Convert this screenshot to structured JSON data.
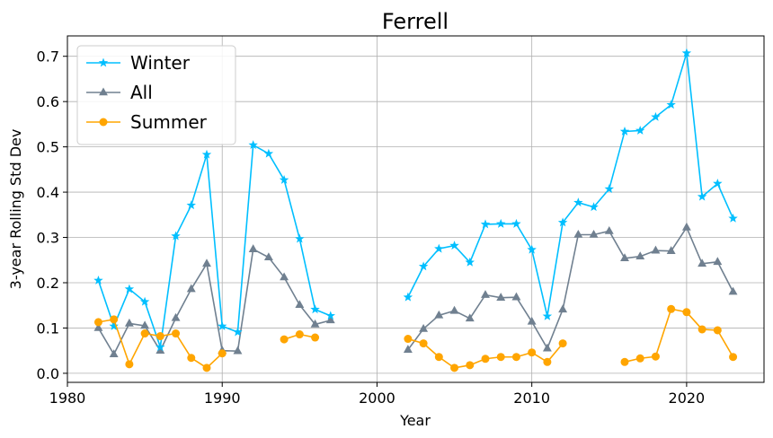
{
  "chart_data": {
    "type": "line",
    "title": "Ferrell",
    "xlabel": "Year",
    "ylabel": "3-year Rolling Std Dev",
    "xlim": [
      1980,
      2025
    ],
    "ylim": [
      -0.02,
      0.745
    ],
    "xticks": [
      1980,
      1990,
      2000,
      2010,
      2020
    ],
    "yticks": [
      "0.0",
      "0.1",
      "0.2",
      "0.3",
      "0.4",
      "0.5",
      "0.6",
      "0.7"
    ],
    "grid": true,
    "legend_position": "top-left",
    "series": [
      {
        "name": "Winter",
        "color": "#00bfff",
        "marker": "star",
        "x": [
          1982,
          1983,
          1984,
          1985,
          1986,
          1987,
          1988,
          1989,
          1990,
          1991,
          1992,
          1993,
          1994,
          1995,
          1996,
          1997,
          null,
          2002,
          2003,
          2004,
          2005,
          2006,
          2007,
          2008,
          2009,
          2010,
          2011,
          2012,
          2013,
          2014,
          2015,
          2016,
          2017,
          2018,
          2019,
          2020,
          2021,
          2022,
          2023
        ],
        "y": [
          0.205,
          0.104,
          0.186,
          0.158,
          0.058,
          0.303,
          0.371,
          0.483,
          0.104,
          0.091,
          0.504,
          0.485,
          0.427,
          0.297,
          0.141,
          0.127,
          null,
          0.168,
          0.236,
          0.275,
          0.282,
          0.245,
          0.329,
          0.33,
          0.33,
          0.273,
          0.126,
          0.333,
          0.377,
          0.367,
          0.407,
          0.534,
          0.536,
          0.566,
          0.593,
          0.707,
          0.39,
          0.419,
          0.342
        ]
      },
      {
        "name": "All",
        "color": "#708090",
        "marker": "triangle",
        "x": [
          1982,
          1983,
          1984,
          1985,
          1986,
          1987,
          1988,
          1989,
          1990,
          1991,
          1992,
          1993,
          1994,
          1995,
          1996,
          1997,
          null,
          2002,
          2003,
          2004,
          2005,
          2006,
          2007,
          2008,
          2009,
          2010,
          2011,
          2012,
          2013,
          2014,
          2015,
          2016,
          2017,
          2018,
          2019,
          2020,
          2021,
          2022,
          2023
        ],
        "y": [
          0.1,
          0.042,
          0.11,
          0.105,
          0.05,
          0.122,
          0.186,
          0.242,
          0.05,
          0.049,
          0.274,
          0.256,
          0.212,
          0.151,
          0.108,
          0.117,
          null,
          0.052,
          0.098,
          0.128,
          0.138,
          0.121,
          0.173,
          0.167,
          0.168,
          0.114,
          0.055,
          0.141,
          0.306,
          0.306,
          0.314,
          0.254,
          0.258,
          0.271,
          0.27,
          0.322,
          0.242,
          0.246,
          0.18
        ]
      },
      {
        "name": "Summer",
        "color": "#ffa500",
        "marker": "circle",
        "x": [
          1982,
          1983,
          1984,
          1985,
          1986,
          1987,
          1988,
          1989,
          1990,
          null,
          1994,
          1995,
          1996,
          null,
          2002,
          2003,
          2004,
          2005,
          2006,
          2007,
          2008,
          2009,
          2010,
          2011,
          2012,
          null,
          2016,
          2017,
          2018,
          2019,
          2020,
          2021,
          2022,
          2023
        ],
        "y": [
          0.113,
          0.119,
          0.02,
          0.088,
          0.082,
          0.088,
          0.034,
          0.012,
          0.044,
          null,
          0.075,
          0.086,
          0.079,
          null,
          0.076,
          0.066,
          0.036,
          0.012,
          0.018,
          0.032,
          0.036,
          0.036,
          0.046,
          0.025,
          0.066,
          null,
          0.025,
          0.033,
          0.037,
          0.142,
          0.135,
          0.097,
          0.095,
          0.036
        ]
      }
    ]
  }
}
